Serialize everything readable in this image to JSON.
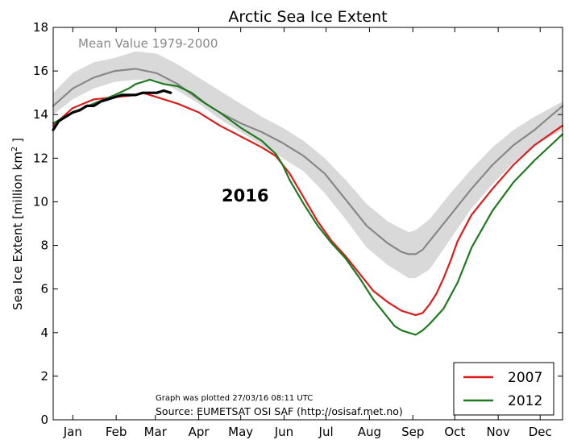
{
  "chart_data": {
    "type": "line",
    "title": "Arctic Sea Ice Extent",
    "ylabel_main": "Sea Ice Extent [million km",
    "ylabel_sup": "2",
    "ylabel_end": " ]",
    "xlabel": "",
    "ylim": [
      0,
      18
    ],
    "yticks": [
      0,
      2,
      4,
      6,
      8,
      10,
      12,
      14,
      16,
      18
    ],
    "x_unit": "day of year",
    "xlim": [
      1,
      365
    ],
    "month_labels": [
      "Jan",
      "Feb",
      "Mar",
      "Apr",
      "May",
      "Jun",
      "Jul",
      "Aug",
      "Sep",
      "Oct",
      "Nov",
      "Dec"
    ],
    "month_label_days": [
      15,
      46,
      74,
      105,
      135,
      166,
      196,
      227,
      258,
      288,
      319,
      349
    ],
    "grid": false,
    "legend_position": "bottom-right",
    "band": {
      "name": "Mean Value 1979-2000",
      "x": [
        1,
        15,
        30,
        45,
        60,
        75,
        90,
        105,
        120,
        135,
        150,
        165,
        180,
        195,
        210,
        225,
        240,
        255,
        260,
        270,
        285,
        300,
        315,
        330,
        345,
        365
      ],
      "upper": [
        15.0,
        15.9,
        16.4,
        16.6,
        16.9,
        16.8,
        16.3,
        15.7,
        15.1,
        14.5,
        13.9,
        13.4,
        12.8,
        12.0,
        11.0,
        9.9,
        9.1,
        8.6,
        8.7,
        9.2,
        10.4,
        11.5,
        12.5,
        13.3,
        13.9,
        14.6
      ],
      "lower": [
        14.0,
        14.7,
        15.2,
        15.5,
        15.6,
        15.6,
        15.1,
        14.5,
        13.8,
        13.2,
        12.6,
        12.0,
        11.4,
        10.4,
        9.2,
        7.9,
        7.1,
        6.5,
        6.5,
        6.9,
        8.3,
        9.7,
        10.8,
        11.8,
        12.6,
        13.3
      ]
    },
    "series": [
      {
        "name": "",
        "color": "#888888",
        "width": 2.2,
        "x": [
          1,
          15,
          30,
          45,
          60,
          75,
          90,
          105,
          120,
          135,
          150,
          165,
          180,
          195,
          210,
          225,
          240,
          250,
          255,
          260,
          265,
          270,
          285,
          300,
          315,
          330,
          345,
          365
        ],
        "y": [
          14.4,
          15.2,
          15.7,
          16.0,
          16.1,
          15.9,
          15.4,
          14.7,
          14.1,
          13.6,
          13.2,
          12.7,
          12.1,
          11.3,
          10.1,
          8.9,
          8.1,
          7.7,
          7.6,
          7.6,
          7.8,
          8.2,
          9.4,
          10.6,
          11.7,
          12.6,
          13.3,
          14.4
        ]
      },
      {
        "name": "2007",
        "color": "#dd1c1c",
        "width": 2.2,
        "x": [
          1,
          15,
          30,
          45,
          60,
          65,
          75,
          90,
          105,
          120,
          135,
          150,
          160,
          170,
          180,
          190,
          200,
          210,
          220,
          230,
          240,
          245,
          250,
          255,
          260,
          265,
          270,
          275,
          280,
          285,
          290,
          300,
          315,
          330,
          345,
          365
        ],
        "y": [
          13.5,
          14.3,
          14.7,
          14.8,
          14.9,
          15.0,
          14.8,
          14.5,
          14.1,
          13.5,
          13.0,
          12.5,
          12.1,
          11.3,
          10.2,
          9.1,
          8.2,
          7.5,
          6.7,
          5.9,
          5.4,
          5.2,
          5.0,
          4.9,
          4.8,
          4.9,
          5.3,
          5.8,
          6.5,
          7.3,
          8.2,
          9.4,
          10.6,
          11.7,
          12.6,
          13.5
        ]
      },
      {
        "name": "2012",
        "color": "#1f7a1f",
        "width": 2.2,
        "x": [
          1,
          15,
          30,
          45,
          55,
          60,
          70,
          75,
          80,
          90,
          100,
          110,
          120,
          135,
          150,
          160,
          165,
          170,
          180,
          190,
          200,
          210,
          220,
          230,
          240,
          245,
          250,
          255,
          260,
          265,
          270,
          280,
          290,
          300,
          315,
          330,
          345,
          365
        ],
        "y": [
          13.6,
          14.1,
          14.5,
          14.9,
          15.2,
          15.4,
          15.6,
          15.5,
          15.4,
          15.3,
          15.0,
          14.5,
          14.1,
          13.4,
          12.8,
          12.2,
          11.7,
          11.0,
          9.9,
          8.9,
          8.1,
          7.4,
          6.5,
          5.5,
          4.7,
          4.3,
          4.1,
          4.0,
          3.9,
          4.1,
          4.4,
          5.1,
          6.3,
          7.9,
          9.6,
          10.9,
          11.9,
          13.1
        ]
      },
      {
        "name": "2016",
        "color": "#000000",
        "width": 3.2,
        "x": [
          1,
          5,
          10,
          15,
          20,
          25,
          30,
          35,
          40,
          45,
          50,
          55,
          60,
          65,
          70,
          75,
          80,
          85
        ],
        "y": [
          13.3,
          13.7,
          13.9,
          14.1,
          14.2,
          14.4,
          14.4,
          14.6,
          14.7,
          14.8,
          14.9,
          14.9,
          14.9,
          15.0,
          15.0,
          15.0,
          15.1,
          15.0
        ]
      }
    ],
    "annotations": {
      "mean_label": "Mean Value 1979-2000",
      "year_label": "2016",
      "plotted": "Graph was plotted 27/03/16 08:11 UTC",
      "source": "Source: EUMETSAT OSI SAF (http://osisaf.met.no)"
    },
    "legend": [
      "2007",
      "2012"
    ],
    "colors": {
      "band": "#d9d9d9",
      "mean": "#888888",
      "y2007": "#dd1c1c",
      "y2012": "#1f7a1f",
      "y2016": "#000000"
    }
  }
}
